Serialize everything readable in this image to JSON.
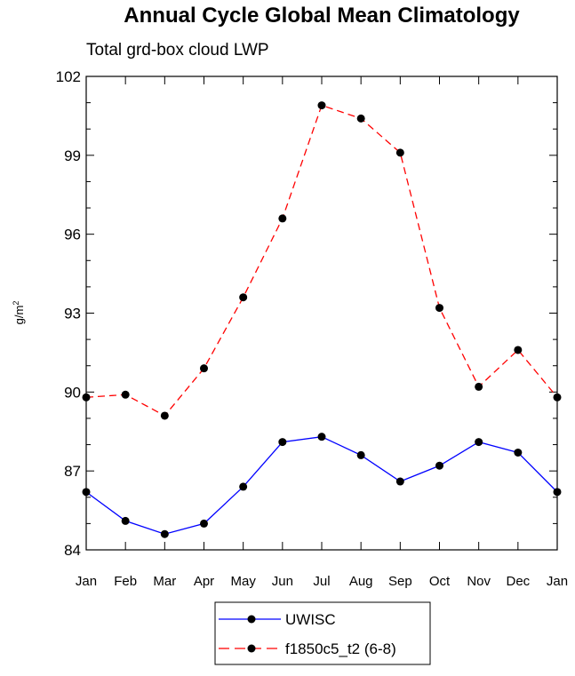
{
  "chart_data": {
    "type": "line",
    "title": "Annual Cycle Global Mean Climatology",
    "subtitle": "Total grd-box cloud LWP",
    "ylabel": "g/m",
    "ylabel_sup": "2",
    "xlabel": "",
    "categories": [
      "Jan",
      "Feb",
      "Mar",
      "Apr",
      "May",
      "Jun",
      "Jul",
      "Aug",
      "Sep",
      "Oct",
      "Nov",
      "Dec",
      "Jan"
    ],
    "ylim": [
      84,
      102
    ],
    "yticks": [
      84,
      87,
      90,
      93,
      96,
      99,
      102
    ],
    "grid": false,
    "legend_position": "bottom-center",
    "series": [
      {
        "name": "UWISC",
        "color": "#0000ff",
        "dash": "solid",
        "values": [
          86.2,
          85.1,
          84.6,
          85.0,
          86.4,
          88.1,
          88.3,
          87.6,
          86.6,
          87.2,
          88.1,
          87.7,
          86.2
        ]
      },
      {
        "name": "f1850c5_t2 (6-8)",
        "color": "#ff0000",
        "dash": "dashed",
        "values": [
          89.8,
          89.9,
          89.1,
          90.9,
          93.6,
          96.6,
          100.9,
          100.4,
          99.1,
          93.2,
          90.2,
          91.6,
          89.8
        ]
      }
    ]
  }
}
